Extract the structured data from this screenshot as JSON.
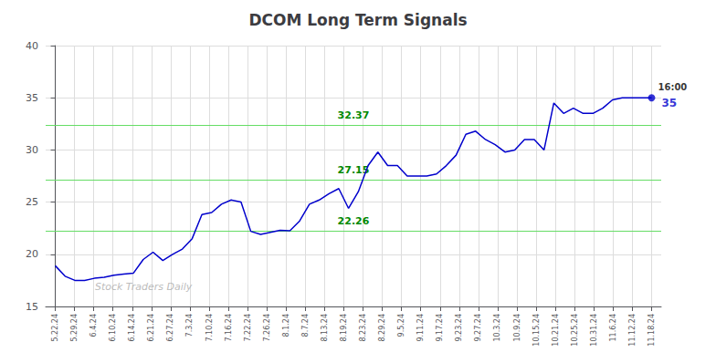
{
  "chart_data": {
    "type": "line",
    "title": "DCOM Long Term Signals",
    "color": "#0000cc",
    "x": [
      0,
      0.508197,
      1.016393,
      1.52459,
      2.032787,
      2.540984,
      3.04918,
      3.557377,
      4.065574,
      4.57377,
      5.081967,
      5.590164,
      6.098361,
      6.606557,
      7.114754,
      7.622951,
      8.131148,
      8.639344,
      9.147541,
      9.655738,
      10.163934,
      10.672131,
      11.180328,
      11.688525,
      12.196721,
      12.704918,
      13.213115,
      13.721311,
      14.229508,
      14.737705,
      15.245902,
      15.754098,
      16.262295,
      16.770492,
      17.278689,
      17.786885,
      18.295082,
      18.803279,
      19.311475,
      19.819672,
      20.327869,
      20.836066,
      21.344262,
      21.852459,
      22.360656,
      22.868852,
      23.377049,
      23.885246,
      24.393443,
      24.901639,
      25.409836,
      25.918033,
      26.42623,
      26.934426,
      27.442623,
      27.95082,
      28.459016,
      28.967213,
      29.47541,
      29.983607,
      30.491803,
      31
    ],
    "values": [
      18.9,
      17.9,
      17.5,
      17.5,
      17.7,
      17.8,
      18.0,
      18.1,
      18.2,
      19.5,
      20.2,
      19.4,
      20.0,
      20.5,
      21.5,
      23.8,
      24.0,
      24.8,
      25.2,
      25.0,
      22.2,
      21.9,
      22.1,
      22.3,
      22.26,
      23.2,
      24.8,
      25.2,
      25.8,
      26.3,
      24.4,
      26.0,
      28.5,
      29.8,
      28.5,
      28.5,
      27.5,
      27.5,
      27.5,
      27.7,
      28.5,
      29.5,
      31.5,
      31.8,
      31.0,
      30.5,
      29.8,
      30.0,
      31.0,
      31.0,
      30.0,
      34.5,
      33.5,
      34.0,
      33.5,
      33.5,
      34.0,
      34.8,
      35.0,
      35.0,
      35.0,
      35.0
    ],
    "xlim": [
      -0.5,
      31.5
    ],
    "xticks": [
      {
        "value": 0,
        "label": "5.22.24"
      },
      {
        "value": 1,
        "label": "5.29.24"
      },
      {
        "value": 2,
        "label": "6.4.24"
      },
      {
        "value": 3,
        "label": "6.10.24"
      },
      {
        "value": 4,
        "label": "6.14.24"
      },
      {
        "value": 5,
        "label": "6.21.24"
      },
      {
        "value": 6,
        "label": "6.27.24"
      },
      {
        "value": 7,
        "label": "7.3.24"
      },
      {
        "value": 8,
        "label": "7.10.24"
      },
      {
        "value": 9,
        "label": "7.16.24"
      },
      {
        "value": 10,
        "label": "7.22.24"
      },
      {
        "value": 11,
        "label": "7.26.24"
      },
      {
        "value": 12,
        "label": "8.1.24"
      },
      {
        "value": 13,
        "label": "8.7.24"
      },
      {
        "value": 14,
        "label": "8.13.24"
      },
      {
        "value": 15,
        "label": "8.19.24"
      },
      {
        "value": 16,
        "label": "8.23.24"
      },
      {
        "value": 17,
        "label": "8.29.24"
      },
      {
        "value": 18,
        "label": "9.5.24"
      },
      {
        "value": 19,
        "label": "9.11.24"
      },
      {
        "value": 20,
        "label": "9.17.24"
      },
      {
        "value": 21,
        "label": "9.23.24"
      },
      {
        "value": 22,
        "label": "9.27.24"
      },
      {
        "value": 23,
        "label": "10.3.24"
      },
      {
        "value": 24,
        "label": "10.9.24"
      },
      {
        "value": 25,
        "label": "10.15.24"
      },
      {
        "value": 26,
        "label": "10.21.24"
      },
      {
        "value": 27,
        "label": "10.25.24"
      },
      {
        "value": 28,
        "label": "10.31.24"
      },
      {
        "value": 29,
        "label": "11.6.24"
      },
      {
        "value": 30,
        "label": "11.12.24"
      },
      {
        "value": 31,
        "label": "11.18.24"
      }
    ],
    "ylim": [
      15,
      40
    ],
    "yticks": [
      15,
      20,
      25,
      30,
      35,
      40
    ],
    "grid": true,
    "hlines": {
      "values": [
        22.26,
        27.15,
        32.37
      ],
      "color": "#66dd66",
      "label_color": "#008800"
    },
    "annotations": [
      {
        "text": "16:00",
        "x": 31,
        "y": 35
      },
      {
        "text": "35",
        "x": 31,
        "y": 35,
        "color": "#0000cc"
      },
      {
        "text": "Stock Traders Daily",
        "color": "#aaaaaa"
      }
    ]
  }
}
